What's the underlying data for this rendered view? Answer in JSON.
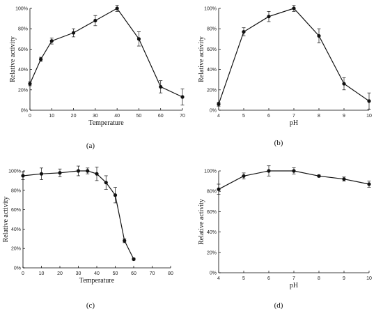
{
  "chart_data": [
    {
      "id": "a",
      "type": "line",
      "panel_label": "(a)",
      "xlabel": "Temperature",
      "ylabel": "Relative activity",
      "xticks": [
        "0",
        "10",
        "20",
        "30",
        "40",
        "50",
        "60",
        "70"
      ],
      "yticks": [
        "0%",
        "20%",
        "40%",
        "60%",
        "80%",
        "100%"
      ],
      "xlim": [
        0,
        70
      ],
      "ylim": [
        0,
        100
      ],
      "series": [
        {
          "x": [
            0,
            5,
            10,
            20,
            30,
            40,
            50,
            60,
            70
          ],
          "y": [
            26,
            50,
            68,
            76,
            88,
            100,
            70,
            23,
            13
          ],
          "err": [
            2,
            2,
            3,
            4,
            5,
            3,
            7,
            6,
            8
          ]
        }
      ]
    },
    {
      "id": "b",
      "type": "line",
      "panel_label": "(b)",
      "xlabel": "pH",
      "ylabel": "Relative activity",
      "xticks": [
        "4",
        "5",
        "6",
        "7",
        "8",
        "9",
        "10"
      ],
      "yticks": [
        "0%",
        "20%",
        "40%",
        "60%",
        "80%",
        "100%"
      ],
      "xlim": [
        4,
        10
      ],
      "ylim": [
        0,
        100
      ],
      "series": [
        {
          "x": [
            4,
            5,
            6,
            7,
            8,
            9,
            10
          ],
          "y": [
            6,
            77,
            92,
            100,
            73,
            26,
            9
          ],
          "err": [
            2,
            4,
            5,
            3,
            7,
            6,
            8
          ]
        }
      ]
    },
    {
      "id": "c",
      "type": "line",
      "panel_label": "(c)",
      "xlabel": "Temperature",
      "ylabel": "Relative activity",
      "xticks": [
        "0",
        "10",
        "20",
        "30",
        "40",
        "50",
        "60",
        "70",
        "80"
      ],
      "yticks": [
        "0%",
        "20%",
        "40%",
        "60%",
        "80%",
        "100%"
      ],
      "xlim": [
        0,
        80
      ],
      "ylim": [
        0,
        100
      ],
      "series": [
        {
          "x": [
            0,
            10,
            20,
            30,
            35,
            40,
            45,
            50,
            55,
            60
          ],
          "y": [
            95,
            97,
            98,
            100,
            100,
            97,
            88,
            75,
            28,
            9
          ],
          "err": [
            4,
            6,
            4,
            5,
            3,
            7,
            7,
            8,
            2,
            1
          ]
        }
      ]
    },
    {
      "id": "d",
      "type": "line",
      "panel_label": "(d)",
      "xlabel": "pH",
      "ylabel": "Relative activity",
      "xticks": [
        "4",
        "5",
        "6",
        "7",
        "8",
        "9",
        "10"
      ],
      "yticks": [
        "0%",
        "20%",
        "40%",
        "60%",
        "80%",
        "100%"
      ],
      "xlim": [
        4,
        10
      ],
      "ylim": [
        0,
        100
      ],
      "series": [
        {
          "x": [
            4,
            5,
            6,
            7,
            8,
            9,
            10
          ],
          "y": [
            82,
            95,
            100,
            100,
            95,
            92,
            87
          ],
          "err": [
            5,
            3,
            5,
            3,
            1,
            2,
            3
          ]
        }
      ]
    }
  ]
}
